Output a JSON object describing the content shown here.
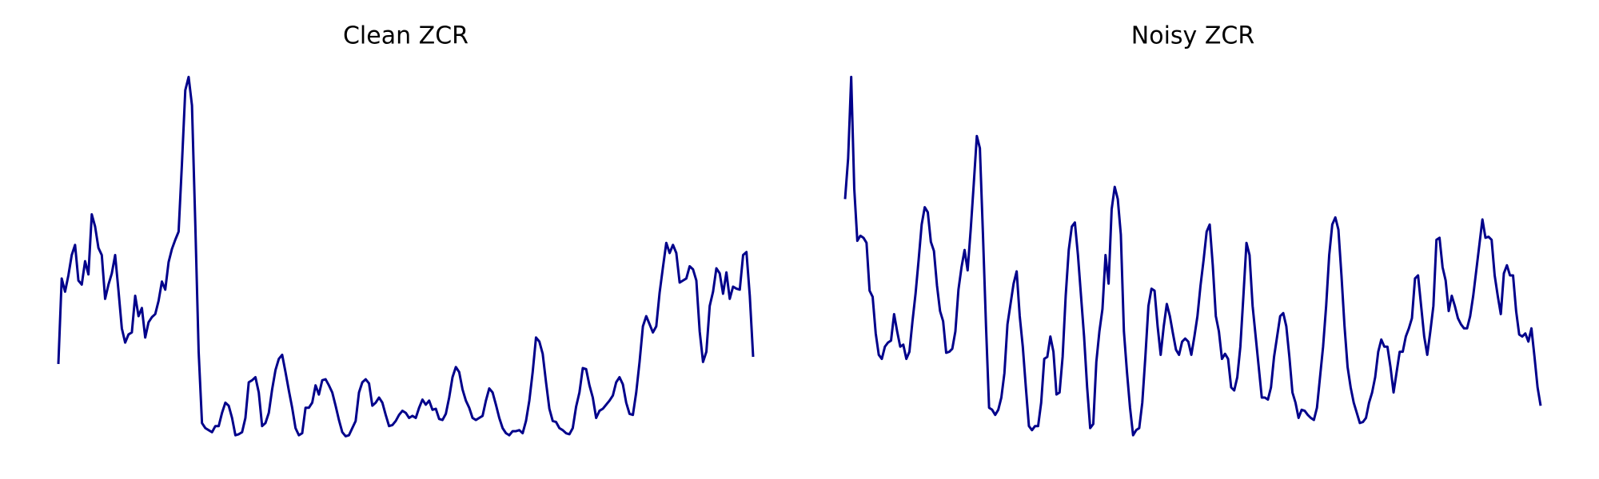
{
  "chart_data": [
    {
      "type": "line",
      "title": "Clean ZCR",
      "color": "#00008b",
      "ylim": [
        0,
        360
      ],
      "values": [
        73,
        157,
        144,
        160,
        180,
        190,
        155,
        151,
        174,
        161,
        220,
        208,
        187,
        180,
        137,
        151,
        162,
        180,
        145,
        108,
        94,
        102,
        104,
        140,
        120,
        128,
        99,
        114,
        119,
        122,
        135,
        154,
        146,
        173,
        186,
        195,
        203,
        270,
        342,
        355,
        327,
        210,
        85,
        15,
        10,
        8,
        6,
        12,
        12,
        25,
        35,
        32,
        20,
        3,
        4,
        6,
        20,
        55,
        57,
        60,
        45,
        12,
        15,
        25,
        48,
        67,
        78,
        82,
        65,
        47,
        30,
        10,
        3,
        5,
        30,
        30,
        35,
        52,
        43,
        57,
        58,
        52,
        45,
        32,
        18,
        6,
        2,
        3,
        10,
        17,
        45,
        55,
        58,
        54,
        32,
        35,
        40,
        35,
        23,
        12,
        13,
        17,
        23,
        27,
        25,
        20,
        22,
        20,
        30,
        38,
        33,
        37,
        28,
        29,
        19,
        18,
        24,
        40,
        60,
        70,
        65,
        48,
        37,
        30,
        20,
        18,
        20,
        22,
        37,
        49,
        45,
        33,
        20,
        10,
        5,
        3,
        7,
        7,
        8,
        5,
        17,
        37,
        65,
        99,
        95,
        83,
        55,
        29,
        17,
        16,
        10,
        8,
        5,
        4,
        10,
        31,
        45,
        69,
        68,
        52,
        40,
        20,
        27,
        29,
        33,
        37,
        42,
        55,
        60,
        53,
        35,
        24,
        23,
        45,
        75,
        110,
        120,
        112,
        104,
        110,
        143,
        168,
        192,
        182,
        190,
        182,
        153,
        155,
        157,
        169,
        166,
        155,
        105,
        75,
        85,
        130,
        144,
        167,
        162,
        142,
        163,
        137,
        149,
        147,
        146,
        180,
        183,
        140,
        80
      ]
    },
    {
      "type": "line",
      "title": "Noisy ZCR",
      "color": "#00008b",
      "ylim": [
        0,
        360
      ],
      "values": [
        235,
        275,
        355,
        245,
        194,
        199,
        197,
        192,
        145,
        139,
        103,
        82,
        78,
        90,
        94,
        96,
        122,
        105,
        90,
        92,
        78,
        85,
        115,
        142,
        175,
        210,
        227,
        222,
        193,
        184,
        150,
        125,
        115,
        84,
        85,
        88,
        105,
        146,
        168,
        185,
        165,
        205,
        250,
        297,
        285,
        200,
        110,
        30,
        28,
        23,
        28,
        40,
        64,
        112,
        132,
        152,
        164,
        120,
        90,
        50,
        12,
        8,
        12,
        12,
        35,
        78,
        80,
        100,
        85,
        43,
        45,
        80,
        140,
        185,
        208,
        212,
        180,
        140,
        100,
        50,
        10,
        14,
        75,
        105,
        127,
        180,
        152,
        225,
        247,
        235,
        200,
        105,
        65,
        30,
        3,
        8,
        10,
        35,
        80,
        130,
        147,
        145,
        110,
        82,
        110,
        132,
        120,
        103,
        87,
        82,
        95,
        98,
        95,
        82,
        100,
        120,
        150,
        175,
        203,
        210,
        170,
        120,
        105,
        78,
        83,
        78,
        50,
        47,
        60,
        90,
        140,
        192,
        180,
        130,
        100,
        70,
        40,
        40,
        38,
        50,
        80,
        100,
        120,
        123,
        110,
        80,
        45,
        35,
        20,
        28,
        27,
        23,
        20,
        18,
        30,
        60,
        90,
        130,
        180,
        210,
        217,
        205,
        160,
        110,
        70,
        50,
        35,
        25,
        15,
        16,
        20,
        35,
        45,
        60,
        85,
        97,
        90,
        90,
        70,
        45,
        65,
        85,
        85,
        100,
        108,
        118,
        157,
        160,
        130,
        100,
        82,
        105,
        130,
        195,
        197,
        168,
        155,
        125,
        140,
        130,
        118,
        112,
        108,
        108,
        120,
        140,
        165,
        190,
        215,
        197,
        198,
        195,
        160,
        140,
        122,
        162,
        170,
        160,
        160,
        125,
        102,
        100,
        103,
        95,
        108,
        80,
        50,
        32
      ]
    }
  ]
}
